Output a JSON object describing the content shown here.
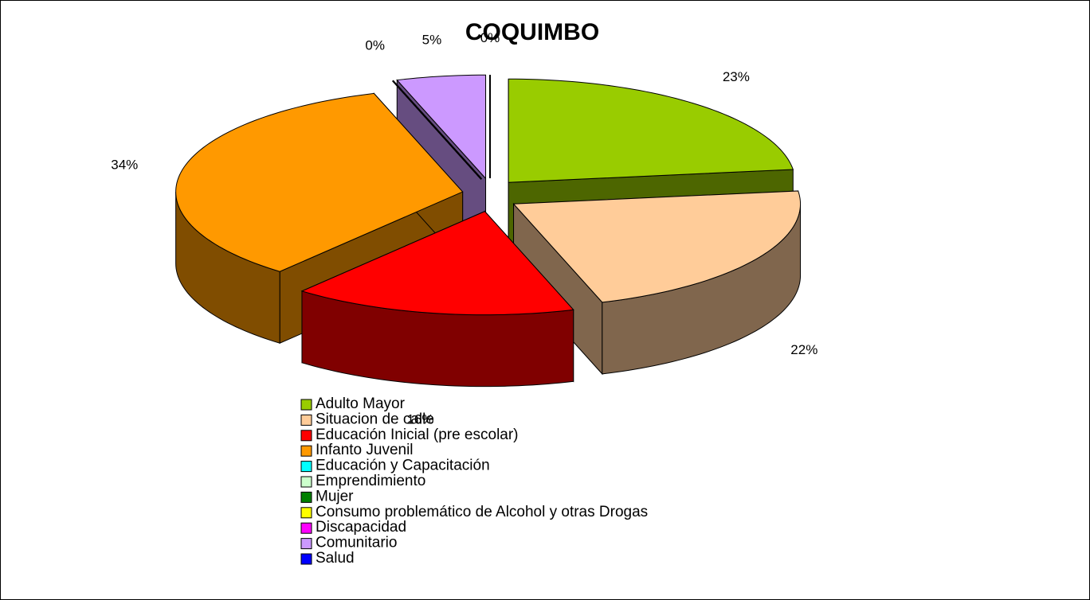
{
  "chart_data": {
    "type": "pie3d",
    "title": "COQUIMBO",
    "categories": [
      "Adulto Mayor",
      "Situacion de calle",
      "Educación Inicial (pre escolar)",
      "Infanto Juvenil",
      "Educación y Capacitación",
      "Emprendimiento",
      "Mujer",
      "Consumo problemático de Alcohol y otras Drogas",
      "Discapacidad",
      "Comunitario",
      "Salud"
    ],
    "values": [
      23,
      22,
      16,
      34,
      0,
      0,
      0,
      0,
      0,
      5,
      0
    ],
    "value_labels": [
      "23%",
      "22%",
      "16%",
      "34%",
      "0%",
      null,
      null,
      null,
      null,
      "5%",
      "0%"
    ],
    "colors": [
      "#99cc00",
      "#ffcc99",
      "#ff0000",
      "#ff9900",
      "#00ffff",
      "#ccffcc",
      "#008000",
      "#ffff00",
      "#ff00ff",
      "#cc99ff",
      "#0000ff"
    ]
  }
}
